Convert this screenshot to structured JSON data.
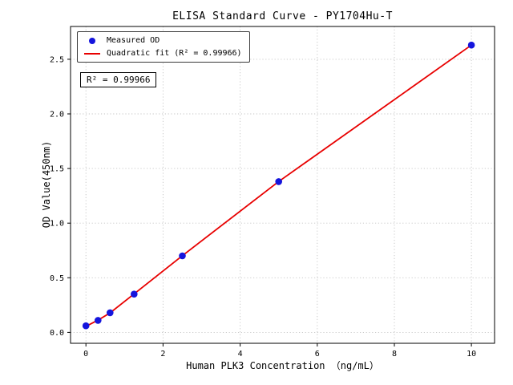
{
  "chart_data": {
    "type": "scatter",
    "title": "ELISA Standard Curve - PY1704Hu-T",
    "xlabel": "Human PLK3 Concentration （ng/mL）",
    "ylabel": "OD Value(450nm)",
    "xlim": [
      -0.4,
      10.6
    ],
    "ylim": [
      -0.1,
      2.8
    ],
    "xticks": [
      0,
      2,
      4,
      6,
      8,
      10
    ],
    "xtick_labels": [
      "0",
      "2",
      "4",
      "6",
      "8",
      "10"
    ],
    "yticks": [
      0.0,
      0.5,
      1.0,
      1.5,
      2.0,
      2.5
    ],
    "ytick_labels": [
      "0.0",
      "0.5",
      "1.0",
      "1.5",
      "2.0",
      "2.5"
    ],
    "grid": {
      "style": "dotted",
      "color": "#c3c3c3"
    },
    "series": [
      {
        "name": "Measured OD",
        "type": "scatter",
        "color": "#1515dd",
        "x": [
          0,
          0.3125,
          0.625,
          1.25,
          2.5,
          5,
          10
        ],
        "y": [
          0.06,
          0.11,
          0.18,
          0.35,
          0.7,
          1.38,
          2.63
        ]
      },
      {
        "name": "Quadratic fit (R² = 0.99966)",
        "type": "line",
        "color": "#e80000",
        "x": [
          0,
          0.3125,
          0.625,
          1.25,
          2.5,
          5,
          10
        ],
        "y": [
          0.055,
          0.112,
          0.178,
          0.352,
          0.702,
          1.381,
          2.63
        ]
      }
    ],
    "legend": {
      "position": "upper left"
    },
    "annotation": {
      "text": "R² = 0.99966"
    },
    "r_squared": 0.99966
  }
}
